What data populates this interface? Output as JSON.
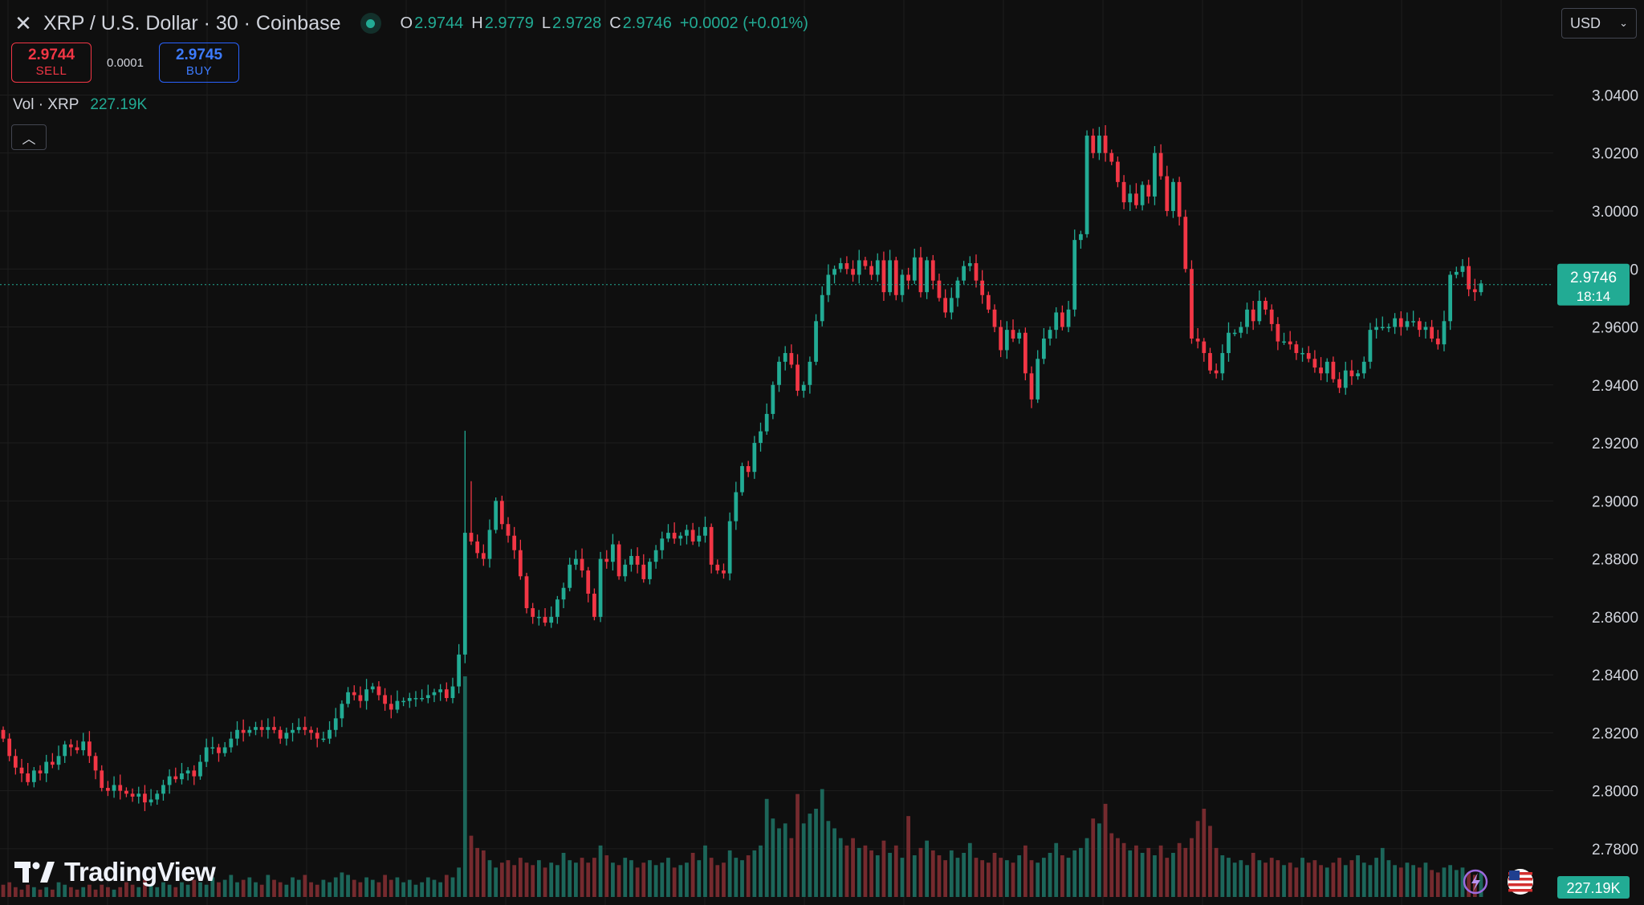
{
  "header": {
    "symbol_title": "XRP / U.S. Dollar · 30 · Coinbase",
    "ohlc": {
      "o_label": "O",
      "o_value": "2.9744",
      "h_label": "H",
      "h_value": "2.9779",
      "l_label": "L",
      "l_value": "2.9728",
      "c_label": "C",
      "c_value": "2.9746",
      "change": "+0.0002 (+0.01%)"
    }
  },
  "trade": {
    "sell_price": "2.9744",
    "sell_label": "SELL",
    "spread": "0.0001",
    "buy_price": "2.9745",
    "buy_label": "BUY"
  },
  "volume_legend": {
    "label": "Vol · XRP",
    "value": "227.19K"
  },
  "currency_select": {
    "value": "USD"
  },
  "price_axis": {
    "ticks": [
      "3.0400",
      "3.0200",
      "3.0000",
      "2.9800",
      "2.9600",
      "2.9400",
      "2.9200",
      "2.9000",
      "2.8800",
      "2.8600",
      "2.8400",
      "2.8200",
      "2.8000",
      "2.7800"
    ],
    "current_price": "2.9746",
    "countdown": "18:14",
    "volume_tag": "227.19K"
  },
  "branding": {
    "name": "TradingView"
  },
  "colors": {
    "up": "#22ab94",
    "down": "#f23645",
    "background": "#0f0f0f",
    "grid": "#1e1e1e"
  },
  "icons": {
    "close": "close-icon",
    "collapse": "chevron-up-icon",
    "dropdown": "chevron-down-icon",
    "live": "live-dot-icon",
    "flag": "us-flag-icon",
    "bolt": "lightning-icon"
  },
  "chart_data": {
    "type": "candlestick",
    "interval": "30",
    "ylim": [
      2.775,
      3.044
    ],
    "closes": [
      2.818,
      2.812,
      2.808,
      2.806,
      2.803,
      2.807,
      2.806,
      2.81,
      2.809,
      2.812,
      2.816,
      2.815,
      2.814,
      2.817,
      2.812,
      2.807,
      2.801,
      2.8,
      2.802,
      2.8,
      2.799,
      2.798,
      2.799,
      2.796,
      2.797,
      2.799,
      2.802,
      2.805,
      2.804,
      2.806,
      2.807,
      2.805,
      2.81,
      2.815,
      2.815,
      2.813,
      2.815,
      2.818,
      2.821,
      2.82,
      2.821,
      2.822,
      2.821,
      2.822,
      2.821,
      2.818,
      2.82,
      2.821,
      2.822,
      2.821,
      2.82,
      2.818,
      2.818,
      2.821,
      2.825,
      2.83,
      2.834,
      2.833,
      2.831,
      2.835,
      2.836,
      2.833,
      2.83,
      2.828,
      2.831,
      2.831,
      2.832,
      2.832,
      2.832,
      2.833,
      2.834,
      2.835,
      2.832,
      2.836,
      2.847,
      2.889,
      2.886,
      2.882,
      2.88,
      2.89,
      2.9,
      2.892,
      2.888,
      2.883,
      2.874,
      2.863,
      2.86,
      2.86,
      2.858,
      2.86,
      2.866,
      2.87,
      2.878,
      2.88,
      2.876,
      2.868,
      2.86,
      2.88,
      2.879,
      2.885,
      2.874,
      2.878,
      2.881,
      2.878,
      2.873,
      2.879,
      2.883,
      2.887,
      2.889,
      2.887,
      2.888,
      2.89,
      2.886,
      2.888,
      2.891,
      2.878,
      2.876,
      2.875,
      2.893,
      2.903,
      2.912,
      2.91,
      2.92,
      2.924,
      2.93,
      2.94,
      2.948,
      2.951,
      2.947,
      2.938,
      2.94,
      2.948,
      2.962,
      2.971,
      2.978,
      2.98,
      2.982,
      2.98,
      2.978,
      2.983,
      2.981,
      2.978,
      2.983,
      2.972,
      2.983,
      2.971,
      2.978,
      2.976,
      2.984,
      2.972,
      2.983,
      2.976,
      2.97,
      2.965,
      2.97,
      2.976,
      2.981,
      2.982,
      2.976,
      2.971,
      2.966,
      2.96,
      2.952,
      2.959,
      2.956,
      2.958,
      2.944,
      2.935,
      2.949,
      2.956,
      2.959,
      2.965,
      2.96,
      2.966,
      2.99,
      2.992,
      3.026,
      3.02,
      3.026,
      3.02,
      3.017,
      3.01,
      3.003,
      3.006,
      3.002,
      3.009,
      3.005,
      3.02,
      3.012,
      3.0,
      3.01,
      2.998,
      2.98,
      2.956,
      2.955,
      2.951,
      2.945,
      2.944,
      2.951,
      2.958,
      2.958,
      2.96,
      2.966,
      2.962,
      2.969,
      2.966,
      2.961,
      2.955,
      2.955,
      2.954,
      2.951,
      2.951,
      2.949,
      2.946,
      2.944,
      2.948,
      2.942,
      2.939,
      2.945,
      2.943,
      2.944,
      2.948,
      2.959,
      2.96,
      2.96,
      2.96,
      2.963,
      2.96,
      2.962,
      2.962,
      2.959,
      2.96,
      2.956,
      2.954,
      2.962,
      2.978,
      2.979,
      2.981,
      2.973,
      2.972,
      2.975
    ],
    "volumes": [
      0.5,
      0.6,
      0.4,
      0.3,
      0.5,
      0.4,
      0.3,
      0.4,
      0.3,
      0.6,
      0.5,
      0.4,
      0.3,
      0.4,
      0.5,
      0.3,
      0.5,
      0.4,
      0.3,
      0.4,
      0.6,
      0.5,
      0.4,
      0.7,
      0.5,
      0.4,
      0.6,
      0.5,
      0.4,
      0.6,
      0.5,
      0.7,
      0.6,
      0.5,
      0.8,
      0.6,
      0.7,
      0.9,
      0.6,
      0.7,
      0.8,
      0.6,
      0.5,
      0.9,
      0.7,
      0.6,
      0.5,
      0.8,
      0.7,
      0.9,
      0.6,
      0.5,
      0.7,
      0.6,
      0.8,
      1.0,
      0.9,
      0.7,
      0.6,
      0.8,
      0.7,
      0.6,
      0.9,
      0.7,
      0.8,
      0.6,
      0.7,
      0.5,
      0.6,
      0.8,
      0.7,
      0.6,
      0.9,
      0.8,
      1.2,
      9.0,
      2.5,
      2.0,
      1.9,
      1.5,
      1.2,
      1.4,
      1.5,
      1.3,
      1.6,
      1.4,
      1.3,
      1.5,
      1.2,
      1.4,
      1.3,
      1.8,
      1.5,
      1.4,
      1.6,
      1.4,
      1.6,
      2.1,
      1.7,
      1.4,
      1.3,
      1.6,
      1.5,
      1.2,
      1.4,
      1.5,
      1.3,
      1.4,
      1.6,
      1.2,
      1.3,
      1.4,
      1.8,
      1.5,
      2.1,
      1.6,
      1.3,
      1.4,
      1.9,
      1.6,
      1.5,
      1.7,
      1.9,
      2.1,
      4.0,
      3.2,
      2.8,
      3.0,
      2.4,
      4.2,
      3.0,
      3.4,
      3.6,
      4.4,
      3.1,
      2.8,
      2.4,
      2.1,
      2.4,
      2.0,
      2.1,
      1.9,
      1.7,
      2.3,
      1.8,
      2.1,
      1.6,
      3.3,
      1.7,
      2.0,
      2.3,
      1.9,
      1.7,
      1.5,
      1.9,
      1.6,
      1.8,
      2.2,
      1.6,
      1.5,
      1.4,
      1.8,
      1.6,
      1.5,
      1.4,
      1.7,
      2.1,
      1.5,
      1.4,
      1.6,
      1.8,
      2.2,
      1.7,
      1.6,
      1.9,
      2.0,
      2.4,
      3.2,
      3.0,
      3.8,
      2.6,
      2.4,
      2.2,
      1.9,
      2.1,
      1.8,
      2.0,
      1.7,
      2.1,
      1.6,
      1.8,
      2.2,
      2.0,
      2.4,
      3.1,
      3.6,
      2.9,
      2.0,
      1.7,
      1.6,
      1.4,
      1.5,
      1.3,
      1.8,
      1.5,
      1.4,
      1.6,
      1.5,
      1.3,
      1.4,
      1.2,
      1.6,
      1.4,
      1.5,
      1.3,
      1.2,
      1.4,
      1.6,
      1.3,
      1.5,
      1.7,
      1.4,
      1.3,
      1.6,
      2.0,
      1.5,
      1.3,
      1.2,
      1.4,
      1.3,
      1.2,
      1.4,
      1.1,
      1.0,
      1.2,
      1.3,
      1.1,
      1.2,
      1.0,
      0.9,
      1.0
    ]
  }
}
